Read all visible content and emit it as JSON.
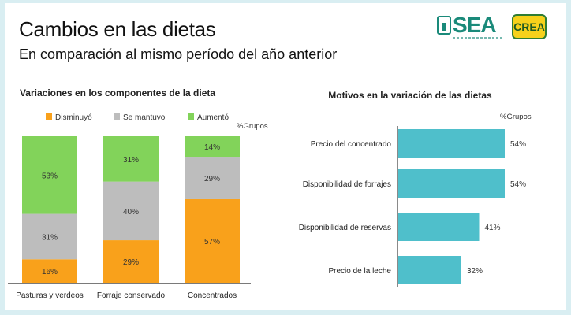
{
  "header": {
    "title": "Cambios en las dietas",
    "subtitle": "En comparación al mismo período del año anterior",
    "logo_sea": "SEA",
    "logo_crea": "CREA"
  },
  "colors": {
    "disminuyo": "#f9a11b",
    "se_mantuvo": "#bdbdbd",
    "aumento": "#82d35a",
    "bars_right": "#4fbfcb"
  },
  "chart_data": [
    {
      "type": "bar",
      "stacked": true,
      "orientation": "vertical",
      "title": "Variaciones en los componentes de la dieta",
      "unit_label": "%Grupos",
      "categories": [
        "Pasturas y verdeos",
        "Forraje conservado",
        "Concentrados"
      ],
      "series": [
        {
          "name": "Disminuyó",
          "values": [
            16,
            29,
            57
          ],
          "labels": [
            "16%",
            "29%",
            "57%"
          ]
        },
        {
          "name": "Se mantuvo",
          "values": [
            31,
            40,
            29
          ],
          "labels": [
            "31%",
            "40%",
            "29%"
          ]
        },
        {
          "name": "Aumentó",
          "values": [
            53,
            31,
            14
          ],
          "labels": [
            "53%",
            "31%",
            "14%"
          ]
        }
      ],
      "ylim": [
        0,
        100
      ]
    },
    {
      "type": "bar",
      "orientation": "horizontal",
      "title": "Motivos en la variación de las dietas",
      "unit_label": "%Grupos",
      "categories": [
        "Precio del concentrado",
        "Disponibilidad de forrajes",
        "Disponibilidad de reservas",
        "Precio de la leche"
      ],
      "values": [
        54,
        54,
        41,
        32
      ],
      "labels": [
        "54%",
        "54%",
        "41%",
        "32%"
      ],
      "xlim": [
        0,
        54
      ]
    }
  ]
}
